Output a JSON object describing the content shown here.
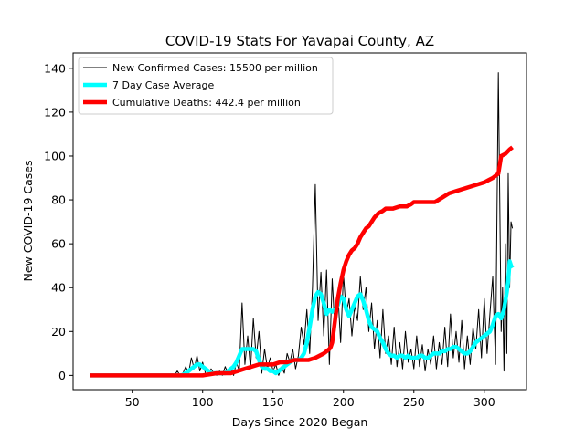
{
  "chart_data": {
    "type": "line",
    "title": "COVID-19 Stats For Yavapai County, AZ",
    "xlabel": "Days Since 2020 Began",
    "ylabel": "New COVID-19 Cases",
    "xlim": [
      8,
      330
    ],
    "ylim": [
      -6.5,
      147
    ],
    "xticks": [
      50,
      100,
      150,
      200,
      250,
      300
    ],
    "yticks": [
      0,
      20,
      40,
      60,
      80,
      100,
      120,
      140
    ],
    "grid": false,
    "legend_position": "top-left",
    "series": [
      {
        "name": "New Confirmed Cases: 15500 per million",
        "color": "#000000",
        "width": 1,
        "x": [
          20,
          80,
          82,
          84,
          86,
          88,
          90,
          92,
          94,
          96,
          98,
          100,
          102,
          104,
          106,
          108,
          110,
          112,
          114,
          116,
          118,
          120,
          122,
          124,
          126,
          128,
          130,
          132,
          134,
          136,
          138,
          140,
          142,
          144,
          146,
          148,
          150,
          152,
          154,
          156,
          158,
          160,
          162,
          164,
          166,
          168,
          170,
          172,
          174,
          176,
          178,
          180,
          182,
          184,
          186,
          188,
          190,
          192,
          194,
          196,
          198,
          200,
          202,
          204,
          206,
          208,
          210,
          212,
          214,
          216,
          218,
          220,
          222,
          224,
          226,
          228,
          230,
          232,
          234,
          236,
          238,
          240,
          242,
          244,
          246,
          248,
          250,
          252,
          254,
          256,
          258,
          260,
          262,
          264,
          266,
          268,
          270,
          272,
          274,
          276,
          278,
          280,
          282,
          284,
          286,
          288,
          290,
          292,
          294,
          296,
          298,
          300,
          302,
          304,
          306,
          308,
          310,
          311,
          312,
          313,
          314,
          315,
          316,
          317,
          318,
          319,
          320
        ],
        "y": [
          0,
          0,
          2,
          0,
          1,
          4,
          1,
          8,
          3,
          9,
          2,
          6,
          1,
          0,
          3,
          1,
          0,
          2,
          0,
          4,
          1,
          3,
          0,
          6,
          2,
          33,
          5,
          18,
          3,
          26,
          8,
          20,
          1,
          12,
          3,
          8,
          2,
          5,
          0,
          4,
          1,
          10,
          6,
          12,
          3,
          9,
          22,
          14,
          30,
          10,
          40,
          87,
          25,
          47,
          18,
          48,
          5,
          44,
          20,
          38,
          15,
          46,
          28,
          35,
          18,
          32,
          25,
          45,
          30,
          40,
          20,
          33,
          12,
          25,
          8,
          30,
          10,
          18,
          5,
          22,
          4,
          15,
          3,
          20,
          6,
          12,
          3,
          18,
          4,
          14,
          2,
          12,
          5,
          18,
          3,
          15,
          5,
          22,
          4,
          28,
          8,
          20,
          6,
          25,
          3,
          18,
          5,
          22,
          12,
          30,
          8,
          35,
          10,
          28,
          45,
          5,
          138,
          80,
          20,
          40,
          2,
          60,
          10,
          92,
          40,
          70,
          67
        ]
      },
      {
        "name": "7 Day Case Average",
        "color": "#00ffff",
        "width": 4.5,
        "x": [
          20,
          85,
          88,
          90,
          92,
          94,
          96,
          98,
          100,
          102,
          104,
          106,
          108,
          110,
          112,
          114,
          116,
          118,
          120,
          122,
          124,
          126,
          128,
          130,
          132,
          134,
          136,
          138,
          140,
          142,
          144,
          146,
          148,
          150,
          152,
          154,
          156,
          158,
          160,
          162,
          164,
          166,
          168,
          170,
          172,
          174,
          176,
          178,
          180,
          182,
          184,
          186,
          188,
          190,
          192,
          194,
          196,
          198,
          200,
          202,
          204,
          206,
          208,
          210,
          212,
          214,
          216,
          218,
          220,
          222,
          224,
          226,
          228,
          230,
          232,
          234,
          236,
          238,
          240,
          242,
          244,
          246,
          248,
          250,
          252,
          254,
          256,
          258,
          260,
          262,
          264,
          266,
          268,
          270,
          272,
          274,
          276,
          278,
          280,
          282,
          284,
          286,
          288,
          290,
          292,
          294,
          296,
          298,
          300,
          302,
          304,
          306,
          308,
          310,
          312,
          314,
          316,
          317,
          318,
          319,
          320
        ],
        "y": [
          0,
          0,
          1,
          2,
          3,
          4,
          5,
          5,
          4,
          3,
          2,
          1,
          1,
          1,
          1,
          1,
          1,
          2,
          3,
          4,
          6,
          9,
          12,
          12,
          12,
          12,
          12,
          11,
          7,
          4,
          3,
          3,
          2,
          2,
          1,
          2,
          3,
          4,
          5,
          6,
          7,
          7,
          7,
          8,
          10,
          15,
          22,
          30,
          36,
          38,
          37,
          33,
          28,
          30,
          29,
          30,
          32,
          36,
          35,
          30,
          27,
          30,
          33,
          36,
          37,
          34,
          30,
          25,
          22,
          21,
          20,
          17,
          15,
          12,
          10,
          9,
          9,
          8,
          9,
          9,
          8,
          9,
          8,
          8,
          8,
          9,
          9,
          8,
          8,
          9,
          10,
          10,
          10,
          11,
          11,
          12,
          12,
          13,
          13,
          12,
          11,
          10,
          10,
          11,
          13,
          15,
          16,
          17,
          18,
          19,
          20,
          23,
          27,
          28,
          26,
          30,
          38,
          43,
          52,
          50,
          49
        ]
      },
      {
        "name": "Cumulative Deaths: 442.4 per million",
        "color": "#ff0000",
        "width": 4.5,
        "x": [
          20,
          100,
          110,
          115,
          118,
          120,
          125,
          130,
          135,
          140,
          145,
          150,
          155,
          160,
          165,
          170,
          175,
          180,
          183,
          186,
          188,
          190,
          191,
          192,
          194,
          196,
          198,
          200,
          202,
          204,
          206,
          208,
          210,
          212,
          214,
          216,
          218,
          220,
          222,
          225,
          228,
          230,
          235,
          240,
          245,
          248,
          250,
          255,
          260,
          265,
          270,
          275,
          280,
          285,
          290,
          295,
          300,
          303,
          306,
          308,
          310,
          312,
          315,
          318,
          320
        ],
        "y": [
          0,
          0,
          1,
          1,
          1,
          1,
          2,
          3,
          4,
          5,
          5,
          5,
          6,
          6,
          7,
          7,
          7,
          8,
          9,
          10,
          11,
          12,
          13,
          15,
          25,
          35,
          42,
          48,
          52,
          55,
          57,
          58,
          60,
          63,
          65,
          67,
          68,
          70,
          72,
          74,
          75,
          76,
          76,
          77,
          77,
          78,
          79,
          79,
          79,
          79,
          81,
          83,
          84,
          85,
          86,
          87,
          88,
          89,
          90,
          91,
          92,
          100,
          101,
          103,
          104
        ]
      }
    ]
  }
}
